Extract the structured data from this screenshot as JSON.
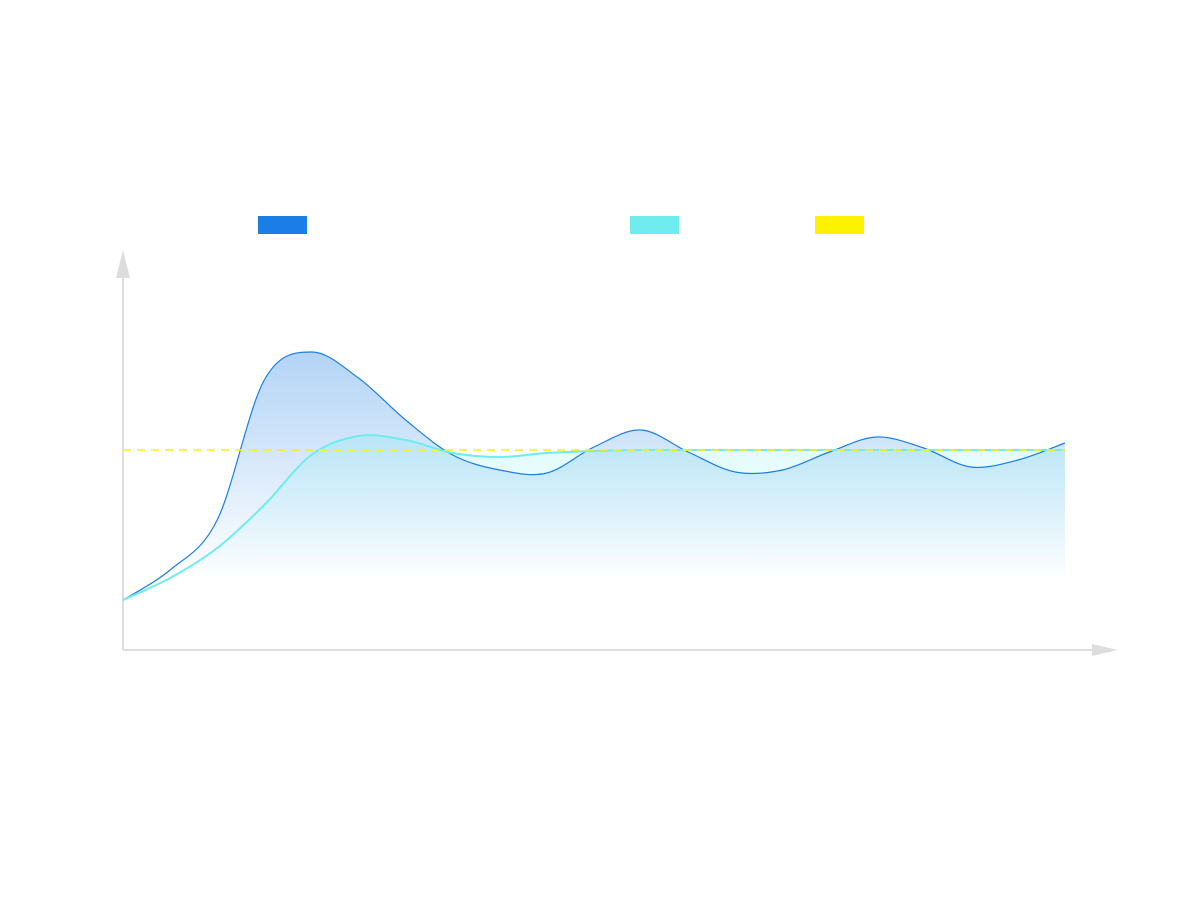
{
  "chart_data": {
    "type": "area",
    "x": [
      0,
      0.5,
      1,
      1.5,
      2,
      2.5,
      3,
      3.5,
      4,
      4.5,
      5,
      5.5,
      6,
      6.5,
      7,
      7.5,
      8,
      8.5,
      9,
      9.5,
      10
    ],
    "series": [
      {
        "color": "#1a7ee6",
        "values": [
          12.5,
          20,
          32.5,
          67.5,
          74.5,
          68,
          57.5,
          48.75,
          45,
          44.25,
          50.75,
          55,
          49.5,
          44.5,
          45,
          49.5,
          53.25,
          50.5,
          45.75,
          47.5,
          51.75
        ]
      },
      {
        "color": "#6eecf0",
        "values": [
          12.5,
          18,
          25.5,
          36.25,
          48.75,
          53.5,
          52.5,
          49.25,
          48.25,
          49.25,
          49.75,
          50,
          50,
          50,
          50,
          50,
          50,
          50,
          50,
          50,
          50
        ]
      }
    ],
    "reference_line": {
      "value": 50,
      "color": "#fff200"
    },
    "xlim": [
      0,
      10.5
    ],
    "ylim": [
      0,
      100
    ],
    "legend": true
  }
}
